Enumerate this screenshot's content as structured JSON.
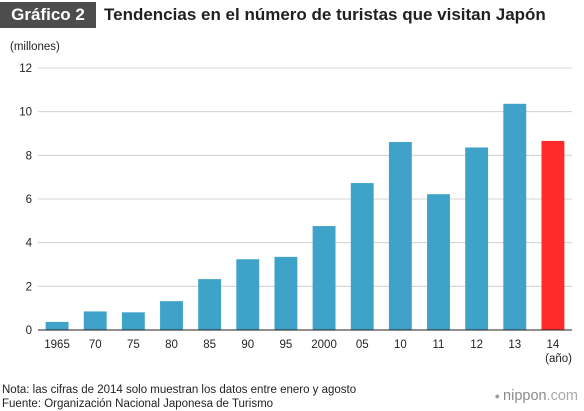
{
  "header": {
    "badge": "Gráfico 2",
    "title": "Tendencias en el número de turistas que visitan Japón"
  },
  "chart_data": {
    "type": "bar",
    "title": "Tendencias en el número de turistas que visitan Japón",
    "ylabel": "(millones)",
    "xlabel": "(año)",
    "ylim": [
      0,
      12
    ],
    "yticks": [
      0,
      2,
      4,
      6,
      8,
      10,
      12
    ],
    "grid": true,
    "categories": [
      "1965",
      "70",
      "75",
      "80",
      "85",
      "90",
      "95",
      "2000",
      "05",
      "10",
      "11",
      "12",
      "13",
      "14"
    ],
    "values": [
      0.37,
      0.85,
      0.81,
      1.32,
      2.33,
      3.24,
      3.35,
      4.76,
      6.73,
      8.61,
      6.22,
      8.36,
      10.36,
      8.66
    ],
    "bar_color": "#3fa2c8",
    "highlight_color": "#ff2b2b",
    "highlight_index": 13
  },
  "footer": {
    "note": "Nota: las cifras de 2014 solo muestran los datos entre enero y agosto",
    "source": "Fuente: Organización Nacional Japonesa de Turismo"
  },
  "brand": {
    "name": "nippon",
    "suffix": ".com"
  }
}
